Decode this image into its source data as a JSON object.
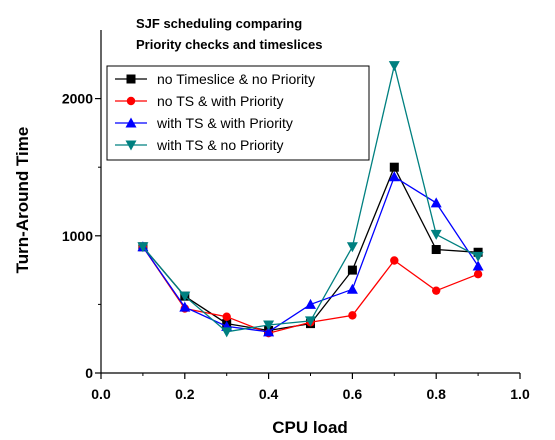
{
  "chart_data": {
    "type": "line",
    "title_lines": [
      "SJF scheduling comparing",
      "Priority checks and timeslices"
    ],
    "xlabel": "CPU load",
    "ylabel": "Turn-Around Time",
    "xlim": [
      0.0,
      1.0
    ],
    "ylim": [
      0,
      2500
    ],
    "x_ticks": [
      0.0,
      0.2,
      0.4,
      0.6,
      0.8,
      1.0
    ],
    "x_tick_labels": [
      "0.0",
      "0.2",
      "0.4",
      "0.6",
      "0.8",
      "1.0"
    ],
    "y_ticks": [
      0,
      1000,
      2000
    ],
    "y_tick_labels": [
      "0",
      "1000",
      "2000"
    ],
    "grid": false,
    "legend_position": "top-left inside plot",
    "x": [
      0.1,
      0.2,
      0.3,
      0.4,
      0.5,
      0.6,
      0.7,
      0.8,
      0.9
    ],
    "series": [
      {
        "name": "no Timeslice & no Priority",
        "color": "#000000",
        "marker": "square",
        "values": [
          920,
          560,
          360,
          310,
          360,
          750,
          1500,
          900,
          880
        ]
      },
      {
        "name": "no TS & with Priority",
        "color": "#ff0000",
        "marker": "circle",
        "values": [
          920,
          470,
          410,
          290,
          370,
          420,
          820,
          600,
          720
        ]
      },
      {
        "name": "with TS & with Priority",
        "color": "#0000ff",
        "marker": "triangle-up",
        "values": [
          920,
          480,
          340,
          300,
          500,
          610,
          1430,
          1240,
          780
        ]
      },
      {
        "name": "with TS & no Priority",
        "color": "#008080",
        "marker": "triangle-down",
        "values": [
          920,
          560,
          300,
          350,
          380,
          920,
          2240,
          1010,
          850
        ]
      }
    ]
  }
}
